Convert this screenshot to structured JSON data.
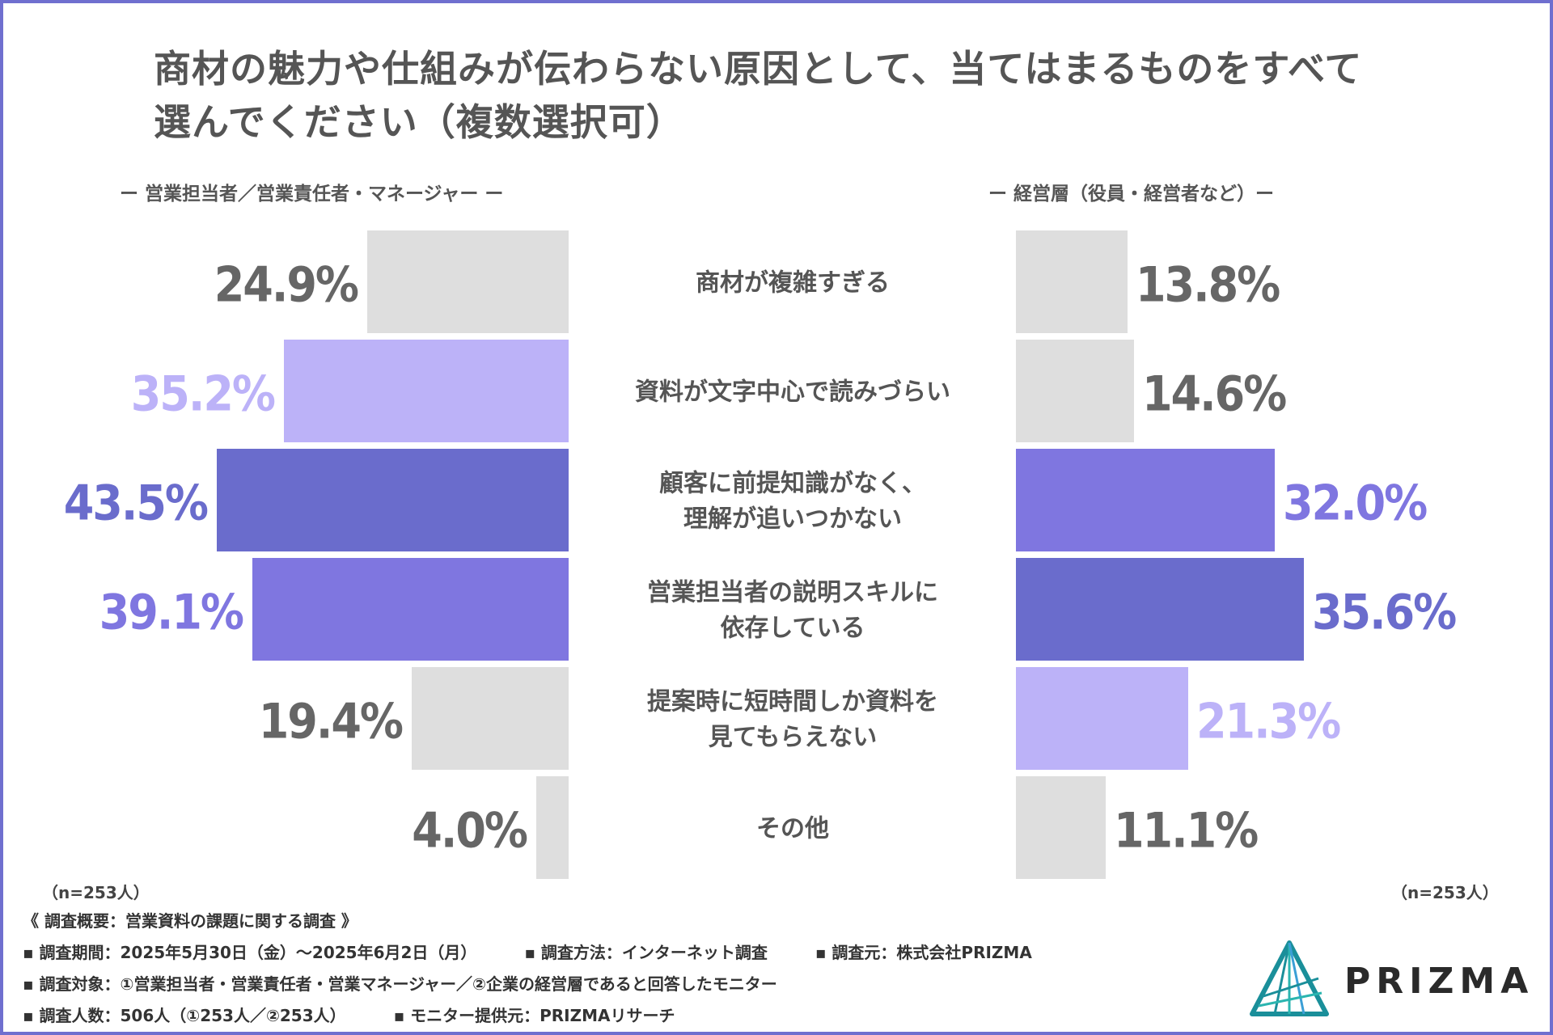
{
  "title_line1": "商材の魅力や仕組みが伝わらない原因として、当てはまるものをすべて",
  "title_line2": "選んでください（複数選択可）",
  "left_header": "ー 営業担当者／営業責任者・マネージャー ー",
  "right_header": "ー 経営層（役員・経営者など）ー",
  "left_n": "（n=253人）",
  "right_n": "（n=253人）",
  "colors": {
    "gray_bar": "#dedede",
    "gray_text": "#666666",
    "light": "#bcb2f8",
    "medium": "#7f76e0",
    "dark": "#6a6ccc",
    "label_text": "#555555"
  },
  "chart_data": {
    "type": "bar",
    "orientation": "horizontal-butterfly",
    "title": "商材の魅力や仕組みが伝わらない原因として、当てはまるものをすべて選んでください（複数選択可）",
    "unit": "%",
    "xlim": [
      0,
      50
    ],
    "categories": [
      [
        "商材が複雑すぎる"
      ],
      [
        "資料が文字中心で読みづらい"
      ],
      [
        "顧客に前提知識がなく、",
        "理解が追いつかない"
      ],
      [
        "営業担当者の説明スキルに",
        "依存している"
      ],
      [
        "提案時に短時間しか資料を",
        "見てもらえない"
      ],
      [
        "その他"
      ]
    ],
    "series": [
      {
        "name": "営業担当者／営業責任者・マネージャー",
        "side": "left",
        "values": [
          24.9,
          35.2,
          43.5,
          39.1,
          19.4,
          4.0
        ],
        "labels": [
          "24.9%",
          "35.2%",
          "43.5%",
          "39.1%",
          "19.4%",
          "4.0%"
        ],
        "color_keys": [
          "gray",
          "light",
          "dark",
          "medium",
          "gray",
          "gray"
        ]
      },
      {
        "name": "経営層（役員・経営者など）",
        "side": "right",
        "values": [
          13.8,
          14.6,
          32.0,
          35.6,
          21.3,
          11.1
        ],
        "labels": [
          "13.8%",
          "14.6%",
          "32.0%",
          "35.6%",
          "21.3%",
          "11.1%"
        ],
        "color_keys": [
          "gray",
          "gray",
          "medium",
          "dark",
          "light",
          "gray"
        ]
      }
    ]
  },
  "footer": {
    "summary": "《 調査概要：営業資料の課題に関する調査 》",
    "period": "▪ 調査期間：2025年5月30日（金）～2025年6月2日（月）",
    "method": "▪ 調査方法：インターネット調査",
    "source": "▪ 調査元：株式会社PRIZMA",
    "target": "▪ 調査対象：①営業担当者・営業責任者・営業マネージャー／②企業の経営層であると回答したモニター",
    "count": "▪ 調査人数：506人（①253人／②253人）",
    "provider": "▪ モニター提供元：PRIZMAリサーチ"
  },
  "logo": {
    "text": "PRIZMA",
    "icon": "prism-triangle-icon"
  }
}
